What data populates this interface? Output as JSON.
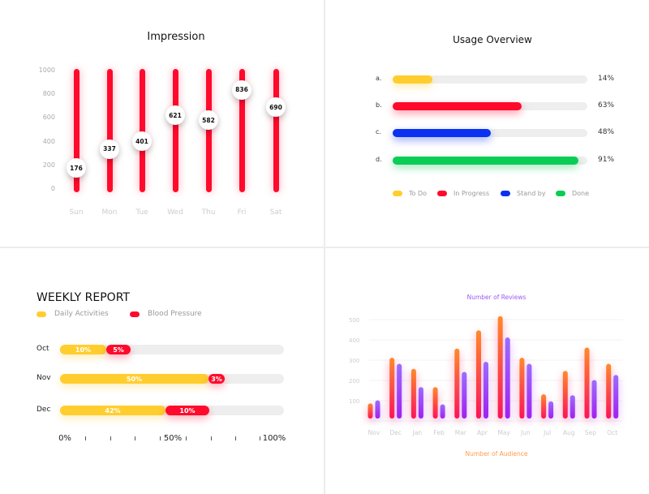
{
  "chart_data": [
    {
      "type": "bar",
      "title": "Impression",
      "categories": [
        "Sun",
        "Mon",
        "Tue",
        "Wed",
        "Thu",
        "Fri",
        "Sat"
      ],
      "values": [
        176,
        337,
        401,
        621,
        582,
        836,
        690
      ],
      "yticks": [
        "0",
        "200",
        "400",
        "600",
        "800",
        "1000"
      ],
      "ylim": [
        0,
        1000
      ],
      "color": "#ff0a2c"
    },
    {
      "type": "bar",
      "orientation": "horizontal",
      "title": "Usage Overview",
      "categories": [
        "a.",
        "b.",
        "c.",
        "d."
      ],
      "values": [
        14,
        63,
        48,
        91
      ],
      "value_labels": [
        "14%",
        "63%",
        "48%",
        "91%"
      ],
      "colors": [
        "#ffcd2e",
        "#ff0a2c",
        "#0a32f0",
        "#0acd55"
      ],
      "legend": [
        "To Do",
        "In Progress",
        "Stand by",
        "Done"
      ],
      "xlim": [
        0,
        100
      ]
    },
    {
      "type": "bar",
      "orientation": "horizontal-stacked",
      "title": "WEEKLY REPORT",
      "categories": [
        "Oct",
        "Nov",
        "Dec"
      ],
      "series": [
        {
          "name": "Daily Activities",
          "values": [
            10,
            50,
            42
          ],
          "labels": [
            "10%",
            "50%",
            "42%"
          ],
          "color": "#ffcd2e"
        },
        {
          "name": "Blood Pressure",
          "values": [
            5,
            3,
            10
          ],
          "labels": [
            "5%",
            "3%",
            "10%"
          ],
          "color": "#ff0a2c"
        }
      ],
      "xticks": [
        "0%",
        "50%",
        "100%"
      ]
    },
    {
      "type": "bar",
      "title": "Number of Reviews",
      "xlabel": "Number of Audience",
      "categories": [
        "Nov",
        "Dec",
        "Jan",
        "Feb",
        "Mar",
        "Apr",
        "May",
        "Jun",
        "Jul",
        "Aug",
        "Sep",
        "Oct"
      ],
      "series": [
        {
          "values": [
            75,
            300,
            245,
            155,
            345,
            435,
            505,
            300,
            120,
            235,
            350,
            270
          ],
          "color": "#ff6a2c"
        },
        {
          "values": [
            90,
            270,
            155,
            70,
            230,
            280,
            400,
            270,
            85,
            115,
            190,
            215
          ],
          "color": "#9b4dff"
        }
      ],
      "yticks": [
        "100",
        "200",
        "300",
        "400",
        "500"
      ],
      "ylim": [
        0,
        520
      ],
      "grid": true
    }
  ]
}
